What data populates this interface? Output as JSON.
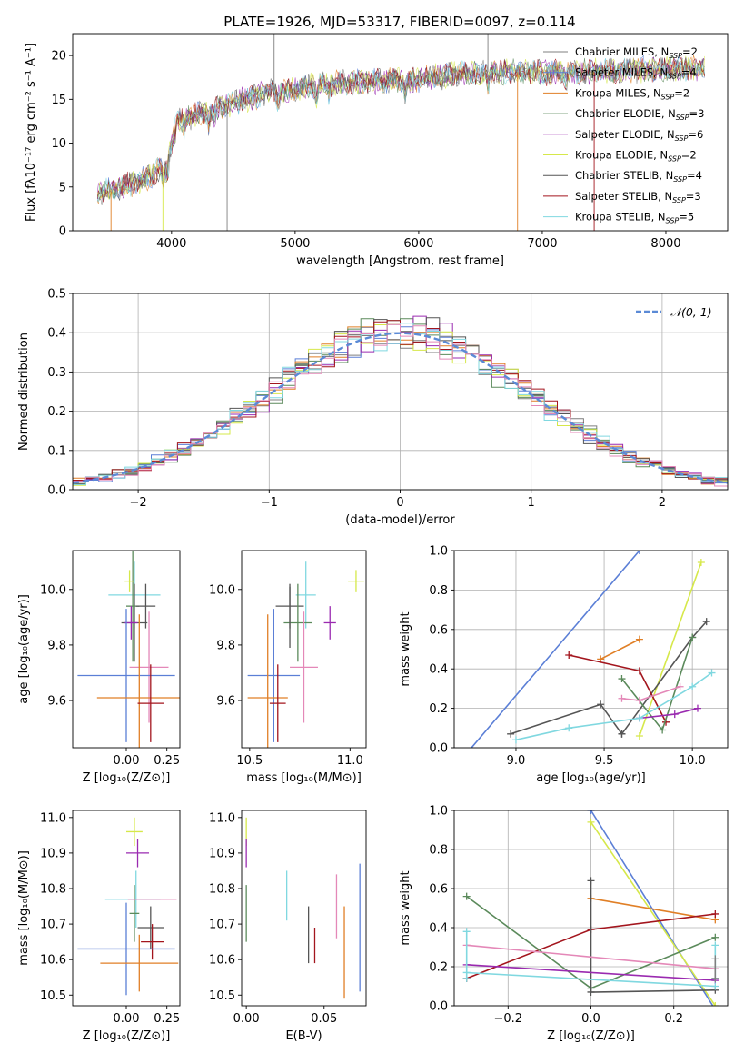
{
  "figure_title": "PLATE=1926, MJD=53317, FIBERID=0097, z=0.114",
  "colors": {
    "Chabrier MILES": "#7f7f7f",
    "Salpeter MILES": "#5b7fd6",
    "Kroupa MILES": "#e07f26",
    "Chabrier ELODIE": "#5b8a5b",
    "Salpeter ELODIE": "#9a2ab0",
    "Kroupa ELODIE": "#d6e84a",
    "Chabrier STELIB": "#555555",
    "Salpeter STELIB": "#a3151d",
    "Kroupa STELIB": "#80d8e0",
    "Pink": "#e488b8",
    "Normal": "#5b8ad6"
  },
  "chart_data": [
    {
      "id": "spectrum",
      "type": "line",
      "title": "PLATE=1926, MJD=53317, FIBERID=0097, z=0.114",
      "xlabel": "wavelength [Angstrom, rest frame]",
      "ylabel": "Flux [fλ10⁻¹⁷ erg cm⁻² s⁻¹ A⁻¹]",
      "xlim": [
        3200,
        8500
      ],
      "ylim": [
        0,
        22.5
      ],
      "xticks": [
        4000,
        5000,
        6000,
        7000,
        8000
      ],
      "yticks": [
        0,
        5,
        10,
        15,
        20
      ],
      "legend_position": "right",
      "series": [
        {
          "name": "Chabrier MILES, N_SSP=2",
          "label": "Chabrier MILES, N",
          "n": "=2",
          "color": "#7f7f7f"
        },
        {
          "name": "Salpeter MILES, N_SSP=4",
          "label": "Salpeter MILES, N",
          "n": "=4",
          "color": "#5b7fd6"
        },
        {
          "name": "Kroupa MILES, N_SSP=2",
          "label": "Kroupa MILES, N",
          "n": "=2",
          "color": "#e07f26"
        },
        {
          "name": "Chabrier ELODIE, N_SSP=3",
          "label": "Chabrier ELODIE, N",
          "n": "=3",
          "color": "#5b8a5b"
        },
        {
          "name": "Salpeter ELODIE, N_SSP=6",
          "label": "Salpeter ELODIE, N",
          "n": "=6",
          "color": "#9a2ab0"
        },
        {
          "name": "Kroupa ELODIE, N_SSP=2",
          "label": "Kroupa ELODIE, N",
          "n": "=2",
          "color": "#d6e84a"
        },
        {
          "name": "Chabrier STELIB, N_SSP=4",
          "label": "Chabrier STELIB, N",
          "n": "=4",
          "color": "#555555"
        },
        {
          "name": "Salpeter STELIB, N_SSP=3",
          "label": "Salpeter STELIB, N",
          "n": "=3",
          "color": "#a3151d"
        },
        {
          "name": "Kroupa STELIB, N_SSP=5",
          "label": "Kroupa STELIB, N",
          "n": "=5",
          "color": "#80d8e0"
        }
      ],
      "continuum_knots": [
        [
          3400,
          4.3
        ],
        [
          3600,
          5.0
        ],
        [
          3800,
          6.0
        ],
        [
          3950,
          7.5
        ],
        [
          4050,
          12.5
        ],
        [
          4200,
          13.3
        ],
        [
          4400,
          14.0
        ],
        [
          4600,
          15.0
        ],
        [
          4800,
          15.8
        ],
        [
          5000,
          16.1
        ],
        [
          5200,
          16.7
        ],
        [
          5500,
          17.0
        ],
        [
          5800,
          17.1
        ],
        [
          6000,
          17.3
        ],
        [
          6400,
          18.0
        ],
        [
          6700,
          18.2
        ],
        [
          7000,
          18.0
        ],
        [
          7300,
          18.1
        ],
        [
          7600,
          18.3
        ],
        [
          8000,
          18.5
        ],
        [
          8300,
          18.6
        ]
      ],
      "spikes": [
        {
          "x": 3510,
          "color": "#e07f26",
          "y": 0
        },
        {
          "x": 3930,
          "color": "#d6e84a",
          "y": 0
        },
        {
          "x": 4450,
          "color": "#7f7f7f",
          "y": 0
        },
        {
          "x": 4830,
          "color": "#7f7f7f",
          "y": 22.5
        },
        {
          "x": 5890,
          "color": "#7f7f7f",
          "y": 14.5
        },
        {
          "x": 6560,
          "color": "#7f7f7f",
          "y": 22.5
        },
        {
          "x": 6800,
          "color": "#e07f26",
          "y": 0
        },
        {
          "x": 7420,
          "color": "#a3151d",
          "y": 0
        }
      ]
    },
    {
      "id": "residuals",
      "type": "bar",
      "xlabel": "(data-model)/error",
      "ylabel": "Normed distribution",
      "xlim": [
        -2.5,
        2.5
      ],
      "ylim": [
        0,
        0.5
      ],
      "xticks": [
        -2,
        -1,
        0,
        1,
        2
      ],
      "yticks": [
        0.0,
        0.1,
        0.2,
        0.3,
        0.4,
        0.5
      ],
      "bin_width": 0.1,
      "legend_label": "𝒩(0, 1)",
      "legend_position": "top-right",
      "grid": true
    },
    {
      "id": "z-age",
      "type": "scatter",
      "xlabel": "Z [log₁₀(Z/Z⊙)]",
      "ylabel": "age  [log₁₀(age/yr)]",
      "xlim": [
        -0.33,
        0.33
      ],
      "ylim": [
        9.43,
        10.14
      ],
      "xticks": [
        0.0,
        0.25
      ],
      "yticks": [
        9.6,
        9.8,
        10.0
      ],
      "points": [
        {
          "x": 0.05,
          "y": 9.98,
          "xe": 0.16,
          "ye": 0.12,
          "color": "#80d8e0"
        },
        {
          "x": 0.05,
          "y": 9.88,
          "xe": 0.08,
          "ye": 0.14,
          "color": "#555555"
        },
        {
          "x": 0.04,
          "y": 9.94,
          "xe": 0.04,
          "ye": 0.2,
          "color": "#5b8a5b"
        },
        {
          "x": 0.02,
          "y": 10.03,
          "xe": 0.03,
          "ye": 0.04,
          "color": "#d6e84a"
        },
        {
          "x": 0.03,
          "y": 9.88,
          "xe": 0.04,
          "ye": 0.06,
          "color": "#9a2ab0"
        },
        {
          "x": 0.12,
          "y": 9.94,
          "xe": 0.06,
          "ye": 0.08,
          "color": "#555555"
        },
        {
          "x": 0.14,
          "y": 9.72,
          "xe": 0.12,
          "ye": 0.2,
          "color": "#e488b8"
        },
        {
          "x": 0.0,
          "y": 9.69,
          "xe": 0.3,
          "ye": 0.24,
          "color": "#5b7fd6"
        },
        {
          "x": 0.08,
          "y": 9.61,
          "xe": 0.26,
          "ye": 0.3,
          "color": "#e07f26"
        },
        {
          "x": 0.15,
          "y": 9.59,
          "xe": 0.08,
          "ye": 0.14,
          "color": "#a3151d"
        }
      ]
    },
    {
      "id": "mass-age",
      "type": "scatter",
      "xlabel": "mass [log₁₀(M/M⊙)]",
      "ylabel": "",
      "xlim": [
        10.46,
        11.08
      ],
      "ylim": [
        9.43,
        10.14
      ],
      "xticks": [
        10.5,
        11.0
      ],
      "yticks": [
        9.6,
        9.8,
        10.0
      ],
      "points": [
        {
          "x": 11.03,
          "y": 10.03,
          "xe": 0.04,
          "ye": 0.04,
          "color": "#d6e84a"
        },
        {
          "x": 10.78,
          "y": 9.98,
          "xe": 0.05,
          "ye": 0.12,
          "color": "#80d8e0"
        },
        {
          "x": 10.7,
          "y": 9.94,
          "xe": 0.07,
          "ye": 0.08,
          "color": "#555555"
        },
        {
          "x": 10.9,
          "y": 9.88,
          "xe": 0.03,
          "ye": 0.06,
          "color": "#9a2ab0"
        },
        {
          "x": 10.74,
          "y": 9.88,
          "xe": 0.07,
          "ye": 0.14,
          "color": "#5b8a5b"
        },
        {
          "x": 10.7,
          "y": 9.9,
          "xe": 0.0,
          "ye": 0.11,
          "color": "#555555"
        },
        {
          "x": 10.77,
          "y": 9.72,
          "xe": 0.07,
          "ye": 0.2,
          "color": "#e488b8"
        },
        {
          "x": 10.62,
          "y": 9.69,
          "xe": 0.13,
          "ye": 0.24,
          "color": "#5b7fd6"
        },
        {
          "x": 10.59,
          "y": 9.61,
          "xe": 0.1,
          "ye": 0.3,
          "color": "#e07f26"
        },
        {
          "x": 10.64,
          "y": 9.59,
          "xe": 0.04,
          "ye": 0.14,
          "color": "#a3151d"
        }
      ]
    },
    {
      "id": "age-weight",
      "type": "line",
      "xlabel": "age  [log₁₀(age/yr)]",
      "ylabel": "mass weight",
      "xlim": [
        8.65,
        10.2
      ],
      "ylim": [
        0,
        1.0
      ],
      "xticks": [
        9.0,
        9.5,
        10.0
      ],
      "yticks": [
        0.0,
        0.2,
        0.4,
        0.6,
        0.8,
        1.0
      ],
      "grid": true,
      "series": [
        {
          "color": "#5b7fd6",
          "points": [
            [
              8.7,
              -0.05
            ],
            [
              9.7,
              1.0
            ]
          ]
        },
        {
          "color": "#e07f26",
          "points": [
            [
              9.48,
              0.45
            ],
            [
              9.7,
              0.55
            ]
          ]
        },
        {
          "color": "#d6e84a",
          "points": [
            [
              9.7,
              0.06
            ],
            [
              10.05,
              0.94
            ]
          ]
        },
        {
          "color": "#555555",
          "points": [
            [
              9.6,
              0.07
            ],
            [
              10.0,
              0.56
            ],
            [
              10.08,
              0.64
            ]
          ]
        },
        {
          "color": "#a3151d",
          "points": [
            [
              9.3,
              0.47
            ],
            [
              9.7,
              0.39
            ],
            [
              9.85,
              0.13
            ]
          ]
        },
        {
          "color": "#5b8a5b",
          "points": [
            [
              9.6,
              0.35
            ],
            [
              9.83,
              0.09
            ],
            [
              10.0,
              0.56
            ]
          ]
        },
        {
          "color": "#555555",
          "points": [
            [
              8.97,
              0.07
            ],
            [
              9.48,
              0.22
            ],
            [
              9.6,
              0.07
            ]
          ]
        },
        {
          "color": "#e488b8",
          "points": [
            [
              9.6,
              0.25
            ],
            [
              9.7,
              0.24
            ],
            [
              9.93,
              0.31
            ]
          ]
        },
        {
          "color": "#9a2ab0",
          "points": [
            [
              9.7,
              0.15
            ],
            [
              9.9,
              0.17
            ],
            [
              10.03,
              0.2
            ]
          ]
        },
        {
          "color": "#80d8e0",
          "points": [
            [
              9.0,
              0.04
            ],
            [
              9.3,
              0.1
            ],
            [
              9.7,
              0.15
            ],
            [
              10.0,
              0.31
            ],
            [
              10.11,
              0.38
            ]
          ]
        }
      ]
    },
    {
      "id": "z-mass",
      "type": "scatter",
      "xlabel": "Z [log₁₀(Z/Z⊙)]",
      "ylabel": "mass [log₁₀(M/M⊙)]",
      "xlim": [
        -0.33,
        0.33
      ],
      "ylim": [
        10.47,
        11.02
      ],
      "xticks": [
        0.0,
        0.25
      ],
      "yticks": [
        10.5,
        10.6,
        10.7,
        10.8,
        10.9,
        11.0
      ],
      "points": [
        {
          "x": 0.05,
          "y": 10.96,
          "xe": 0.05,
          "ye": 0.04,
          "color": "#d6e84a"
        },
        {
          "x": 0.07,
          "y": 10.9,
          "xe": 0.07,
          "ye": 0.04,
          "color": "#9a2ab0"
        },
        {
          "x": 0.04,
          "y": 10.77,
          "xe": 0.17,
          "ye": 0.0,
          "color": "#80d8e0"
        },
        {
          "x": 0.06,
          "y": 10.77,
          "xe": 0.0,
          "ye": 0.08,
          "color": "#80d8e0"
        },
        {
          "x": 0.05,
          "y": 10.73,
          "xe": 0.03,
          "ye": 0.08,
          "color": "#5b8a5b"
        },
        {
          "x": 0.16,
          "y": 10.77,
          "xe": 0.15,
          "ye": 0.0,
          "color": "#e488b8"
        },
        {
          "x": 0.15,
          "y": 10.69,
          "xe": 0.08,
          "ye": 0.06,
          "color": "#555555"
        },
        {
          "x": 0.16,
          "y": 10.65,
          "xe": 0.07,
          "ye": 0.05,
          "color": "#a3151d"
        },
        {
          "x": 0.0,
          "y": 10.63,
          "xe": 0.3,
          "ye": 0.13,
          "color": "#5b7fd6"
        },
        {
          "x": 0.08,
          "y": 10.59,
          "xe": 0.24,
          "ye": 0.08,
          "color": "#e07f26"
        }
      ]
    },
    {
      "id": "ebv-mass",
      "type": "scatter",
      "xlabel": "E(B-V)",
      "ylabel": "",
      "xlim": [
        -0.003,
        0.077
      ],
      "ylim": [
        10.47,
        11.02
      ],
      "xticks": [
        0.0,
        0.05
      ],
      "yticks": [
        10.5,
        10.6,
        10.7,
        10.8,
        10.9,
        11.0
      ],
      "points": [
        {
          "x": 0.0,
          "y": 10.96,
          "xe": 0,
          "ye": 0.04,
          "color": "#d6e84a"
        },
        {
          "x": 0.0,
          "y": 10.9,
          "xe": 0,
          "ye": 0.04,
          "color": "#9a2ab0"
        },
        {
          "x": 0.0,
          "y": 10.73,
          "xe": 0,
          "ye": 0.08,
          "color": "#5b8a5b"
        },
        {
          "x": 0.026,
          "y": 10.78,
          "xe": 0,
          "ye": 0.07,
          "color": "#80d8e0"
        },
        {
          "x": 0.04,
          "y": 10.67,
          "xe": 0,
          "ye": 0.08,
          "color": "#555555"
        },
        {
          "x": 0.044,
          "y": 10.64,
          "xe": 0,
          "ye": 0.05,
          "color": "#a3151d"
        },
        {
          "x": 0.058,
          "y": 10.75,
          "xe": 0,
          "ye": 0.09,
          "color": "#e488b8"
        },
        {
          "x": 0.063,
          "y": 10.62,
          "xe": 0,
          "ye": 0.13,
          "color": "#e07f26"
        },
        {
          "x": 0.073,
          "y": 10.69,
          "xe": 0,
          "ye": 0.18,
          "color": "#5b7fd6"
        }
      ]
    },
    {
      "id": "z-weight",
      "type": "line",
      "xlabel": "Z [log₁₀(Z/Z⊙)]",
      "ylabel": "mass weight",
      "xlim": [
        -0.33,
        0.33
      ],
      "ylim": [
        0,
        1.0
      ],
      "xticks": [
        -0.2,
        0.0,
        0.2
      ],
      "yticks": [
        0.0,
        0.2,
        0.4,
        0.6,
        0.8,
        1.0
      ],
      "grid": true,
      "series": [
        {
          "color": "#5b7fd6",
          "points": [
            [
              0.0,
              1.0
            ],
            [
              0.3,
              -0.02
            ]
          ]
        },
        {
          "color": "#d6e84a",
          "points": [
            [
              0.0,
              0.94
            ],
            [
              0.3,
              0.0
            ]
          ]
        },
        {
          "color": "#e07f26",
          "points": [
            [
              0.0,
              0.55
            ],
            [
              0.3,
              0.44
            ]
          ]
        },
        {
          "color": "#a3151d",
          "points": [
            [
              -0.3,
              0.14
            ],
            [
              0.0,
              0.39
            ],
            [
              0.3,
              0.47
            ]
          ]
        },
        {
          "color": "#5b8a5b",
          "points": [
            [
              -0.3,
              0.56
            ],
            [
              0.0,
              0.09
            ],
            [
              0.3,
              0.35
            ]
          ]
        },
        {
          "color": "#555555",
          "points": [
            [
              0.0,
              0.64
            ],
            [
              0.0,
              0.07
            ],
            [
              0.3,
              0.08
            ]
          ]
        },
        {
          "color": "#e488b8",
          "points": [
            [
              -0.3,
              0.31
            ],
            [
              0.3,
              0.19
            ]
          ]
        },
        {
          "color": "#9a2ab0",
          "points": [
            [
              -0.3,
              0.21
            ],
            [
              0.3,
              0.13
            ]
          ]
        },
        {
          "color": "#80d8e0",
          "points": [
            [
              -0.3,
              0.17
            ],
            [
              0.3,
              0.1
            ]
          ]
        },
        {
          "color": "#80d8e0",
          "points": [
            [
              -0.3,
              0.38
            ],
            [
              -0.3,
              0.14
            ]
          ]
        },
        {
          "color": "#80d8e0",
          "points": [
            [
              0.3,
              0.31
            ],
            [
              0.3,
              0.14
            ]
          ]
        },
        {
          "color": "#7f7f7f",
          "points": [
            [
              0.3,
              0.24
            ],
            [
              0.3,
              0.14
            ]
          ]
        }
      ]
    }
  ]
}
